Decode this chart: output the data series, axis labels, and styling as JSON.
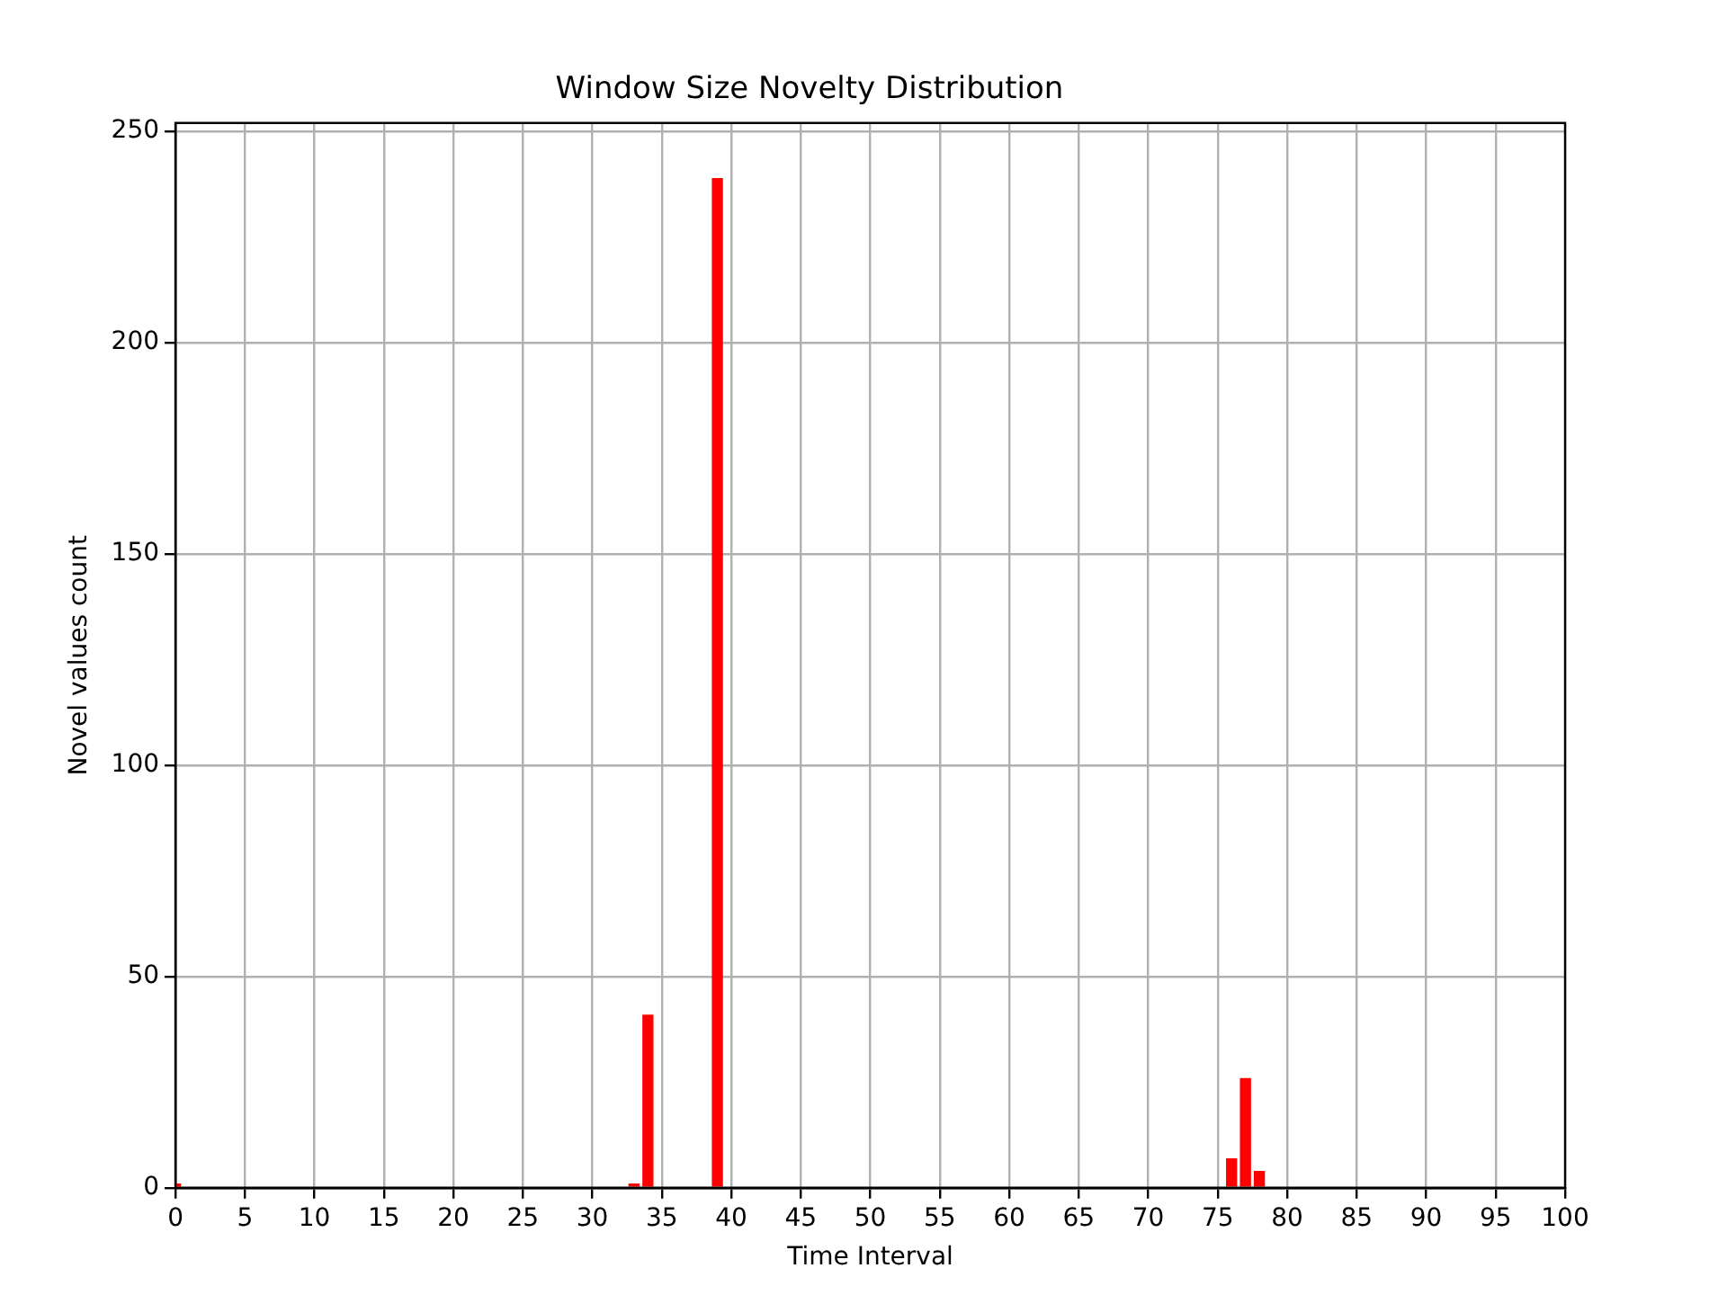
{
  "chart_data": {
    "type": "bar",
    "title": "Window Size Novelty Distribution",
    "xlabel": "Time Interval",
    "ylabel": "Novel values count",
    "x": [
      0,
      1,
      2,
      3,
      4,
      5,
      6,
      7,
      8,
      9,
      10,
      11,
      12,
      13,
      14,
      15,
      16,
      17,
      18,
      19,
      20,
      21,
      22,
      23,
      24,
      25,
      26,
      27,
      28,
      29,
      30,
      31,
      32,
      33,
      34,
      35,
      36,
      37,
      38,
      39,
      40,
      41,
      42,
      43,
      44,
      45,
      46,
      47,
      48,
      49,
      50,
      51,
      52,
      53,
      54,
      55,
      56,
      57,
      58,
      59,
      60,
      61,
      62,
      63,
      64,
      65,
      66,
      67,
      68,
      69,
      70,
      71,
      72,
      73,
      74,
      75,
      76,
      77,
      78,
      79,
      80,
      81,
      82,
      83,
      84,
      85,
      86,
      87,
      88,
      89,
      90,
      91,
      92,
      93,
      94,
      95,
      96,
      97,
      98,
      99
    ],
    "values": [
      1,
      0,
      0,
      0,
      0,
      0,
      0,
      0,
      0,
      0,
      0,
      0,
      0,
      0,
      0,
      0,
      0,
      0,
      0,
      0,
      0,
      0,
      0,
      0,
      0,
      0,
      0,
      0,
      0,
      0,
      0,
      0,
      0,
      1,
      41,
      0,
      0,
      0,
      0,
      239,
      0,
      0,
      0,
      0,
      0,
      0,
      0,
      0,
      0,
      0,
      0,
      0,
      0,
      0,
      0,
      0,
      0,
      0,
      0,
      0,
      0,
      0,
      0,
      0,
      0,
      0,
      0,
      0,
      0,
      0,
      0,
      0,
      0,
      0,
      0,
      0,
      7,
      26,
      4,
      0,
      0,
      0,
      0,
      0,
      0,
      0,
      0,
      0,
      0,
      0,
      0,
      0,
      0,
      0,
      0,
      0,
      0,
      0,
      0,
      0
    ],
    "color": "#ff0000",
    "xlim": [
      0,
      100
    ],
    "xticks": [
      0,
      5,
      10,
      15,
      20,
      25,
      30,
      35,
      40,
      45,
      50,
      55,
      60,
      65,
      70,
      75,
      80,
      85,
      90,
      95,
      100
    ],
    "ylim": [
      0,
      252
    ],
    "yticks": [
      0,
      50,
      100,
      150,
      200,
      250
    ],
    "grid": true
  }
}
